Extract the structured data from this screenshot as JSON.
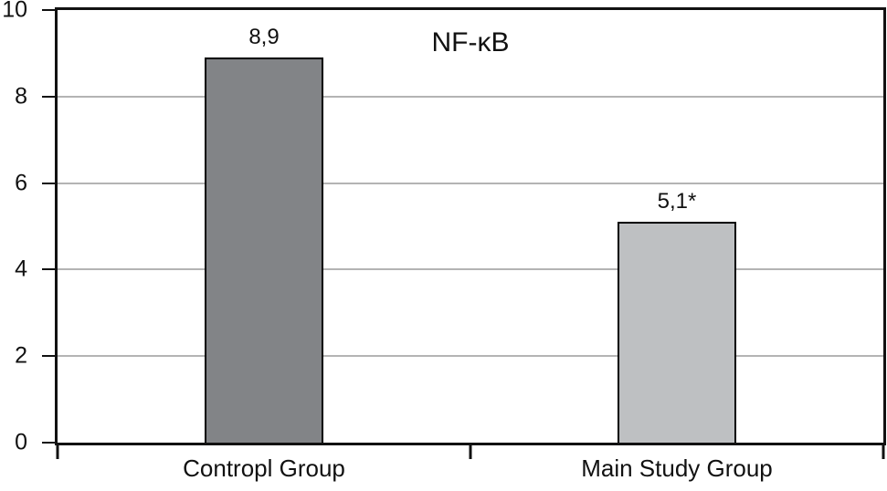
{
  "chart_data": {
    "type": "bar",
    "title": "NF-κB",
    "categories": [
      "Contropl Group",
      "Main Study Group"
    ],
    "values": [
      8.9,
      5.1
    ],
    "bar_labels": [
      "8,9",
      "5,1*"
    ],
    "bar_colors": [
      "#828487",
      "#bec0c2"
    ],
    "bar_border_color": "#000000",
    "xlabel": "",
    "ylabel": "",
    "ylim": [
      0,
      10
    ],
    "yticks": [
      0,
      2,
      4,
      6,
      8,
      10
    ],
    "ytick_labels": [
      "0",
      "2",
      "4",
      "6",
      "8",
      "10"
    ],
    "gridline_values": [
      2,
      4,
      6,
      8
    ],
    "grid": true,
    "legend_position": "none",
    "colors": {
      "gridline": "#b4b4b4",
      "axis": "#111111",
      "text": "#111111",
      "background": "#ffffff"
    }
  }
}
